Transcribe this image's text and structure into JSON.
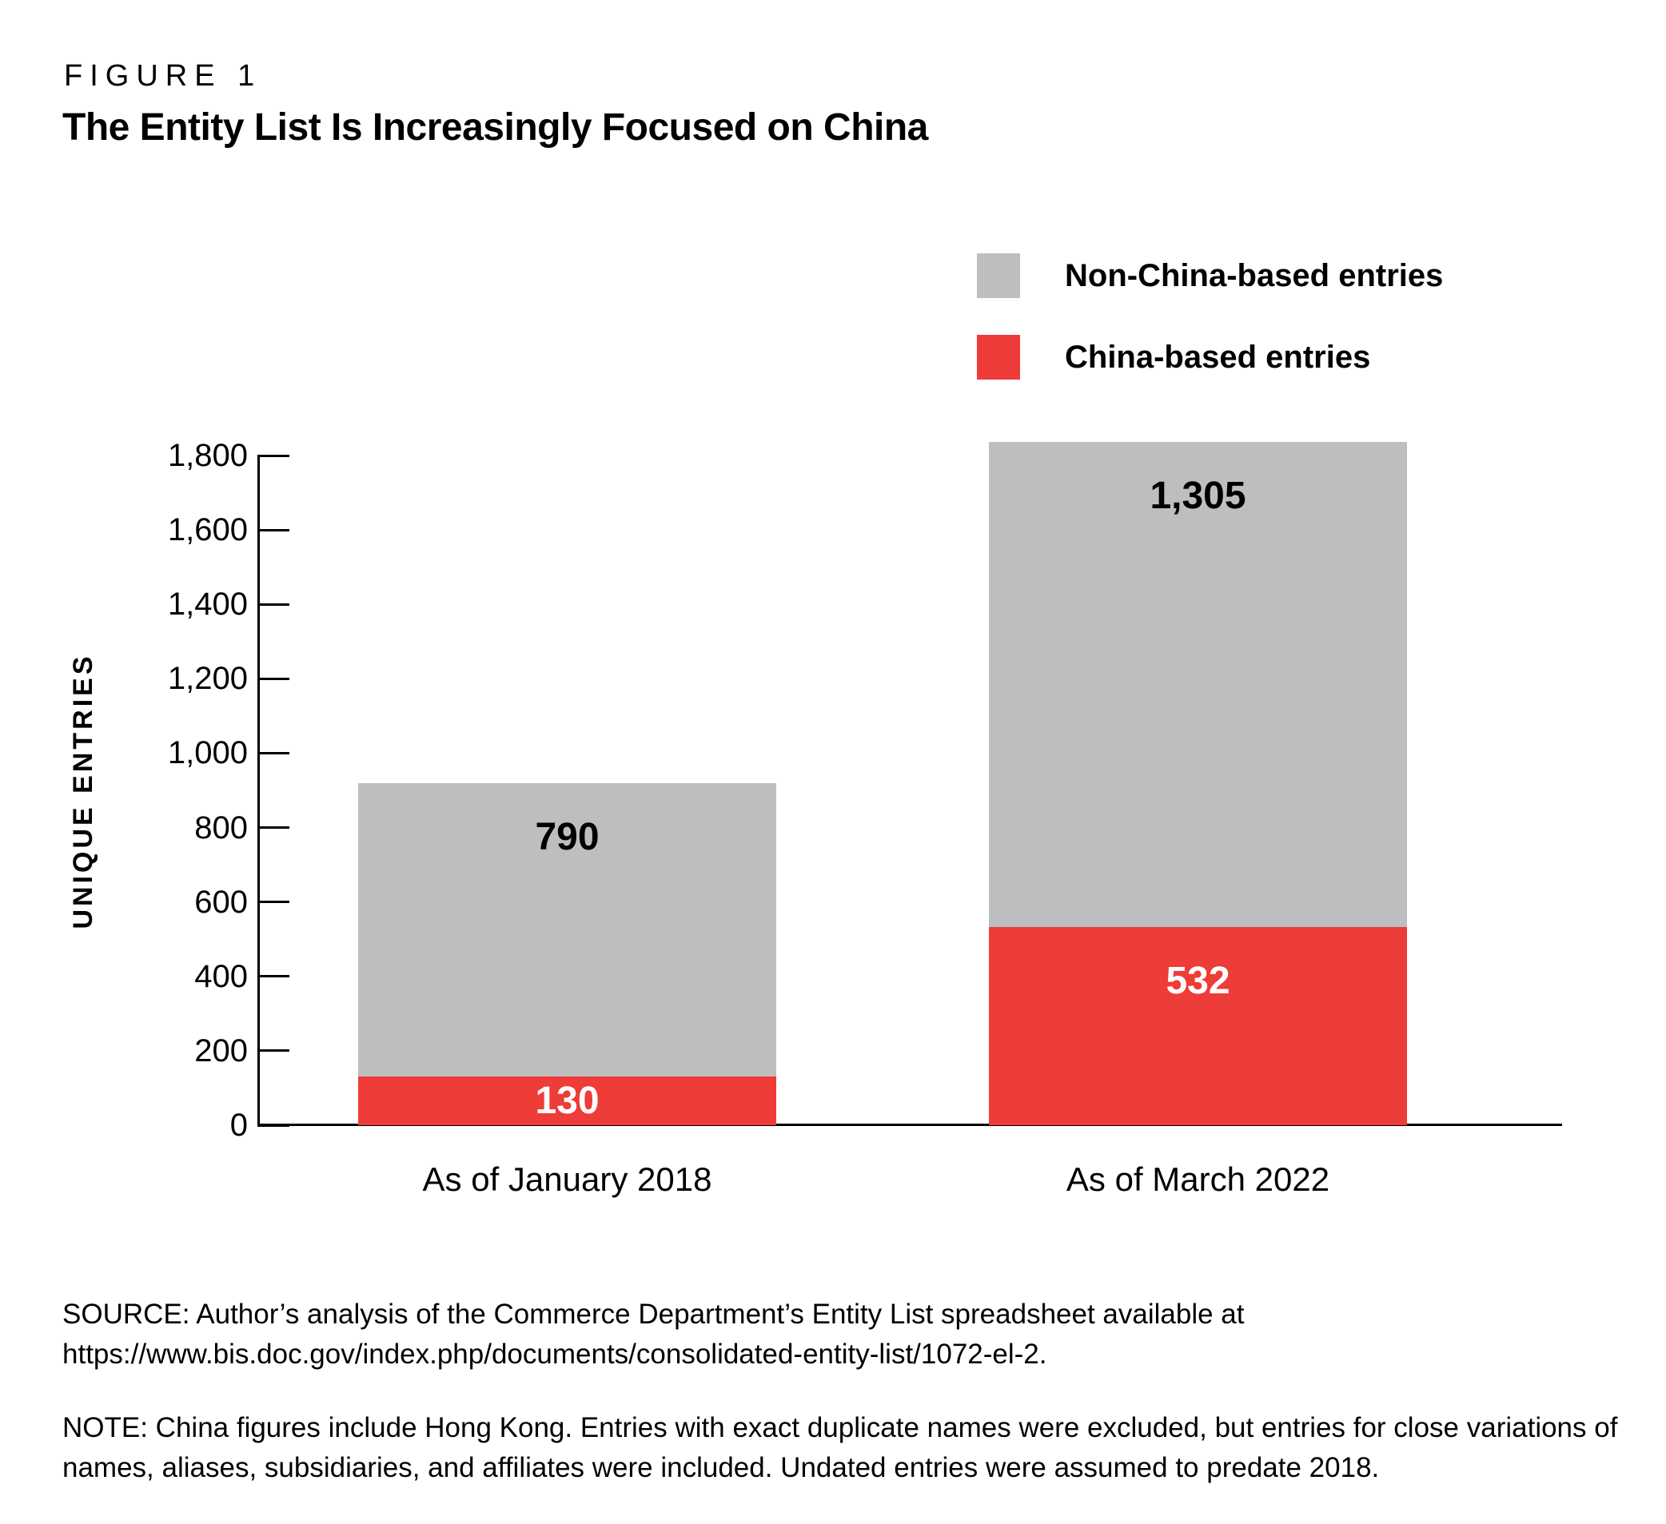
{
  "figure": {
    "kicker": "FIGURE 1",
    "title": "The Entity List Is Increasingly Focused on China"
  },
  "legend": {
    "items": [
      {
        "label": "Non-China-based entries",
        "color": "#bdbec0"
      },
      {
        "label": "China-based entries",
        "color": "#ee3c38"
      }
    ]
  },
  "chart_data": {
    "type": "bar",
    "stacked": true,
    "title": "The Entity List Is Increasingly Focused on China",
    "xlabel": "",
    "ylabel": "UNIQUE ENTRIES",
    "categories": [
      "As of January 2018",
      "As of March 2022"
    ],
    "series": [
      {
        "name": "China-based entries",
        "color": "#ee3c38",
        "values": [
          130,
          532
        ],
        "labels": [
          "130",
          "532"
        ],
        "label_color": "#ffffff"
      },
      {
        "name": "Non-China-based entries",
        "color": "#bdbec0",
        "values": [
          790,
          1305
        ],
        "labels": [
          "790",
          "1,305"
        ],
        "label_color": "#000000"
      }
    ],
    "totals": [
      920,
      1837
    ],
    "ylim": [
      0,
      1800
    ],
    "ytick_interval": 200,
    "yticks": [
      0,
      200,
      400,
      600,
      800,
      1000,
      1200,
      1400,
      1600,
      1800
    ],
    "ytick_labels": [
      "0",
      "200",
      "400",
      "600",
      "800",
      "1,000",
      "1,200",
      "1,400",
      "1,600",
      "1,800"
    ],
    "grid": false,
    "legend_position": "top-right"
  },
  "source": "SOURCE: Author’s analysis of the Commerce Department’s Entity List spreadsheet available at https://www.bis.doc.gov/index.php/documents/consolidated-entity-list/1072-el-2.",
  "note": "NOTE: China figures include Hong Kong. Entries with exact duplicate names were excluded, but entries for close variations of names, aliases, subsidiaries, and affiliates were included. Undated entries were assumed to predate 2018."
}
